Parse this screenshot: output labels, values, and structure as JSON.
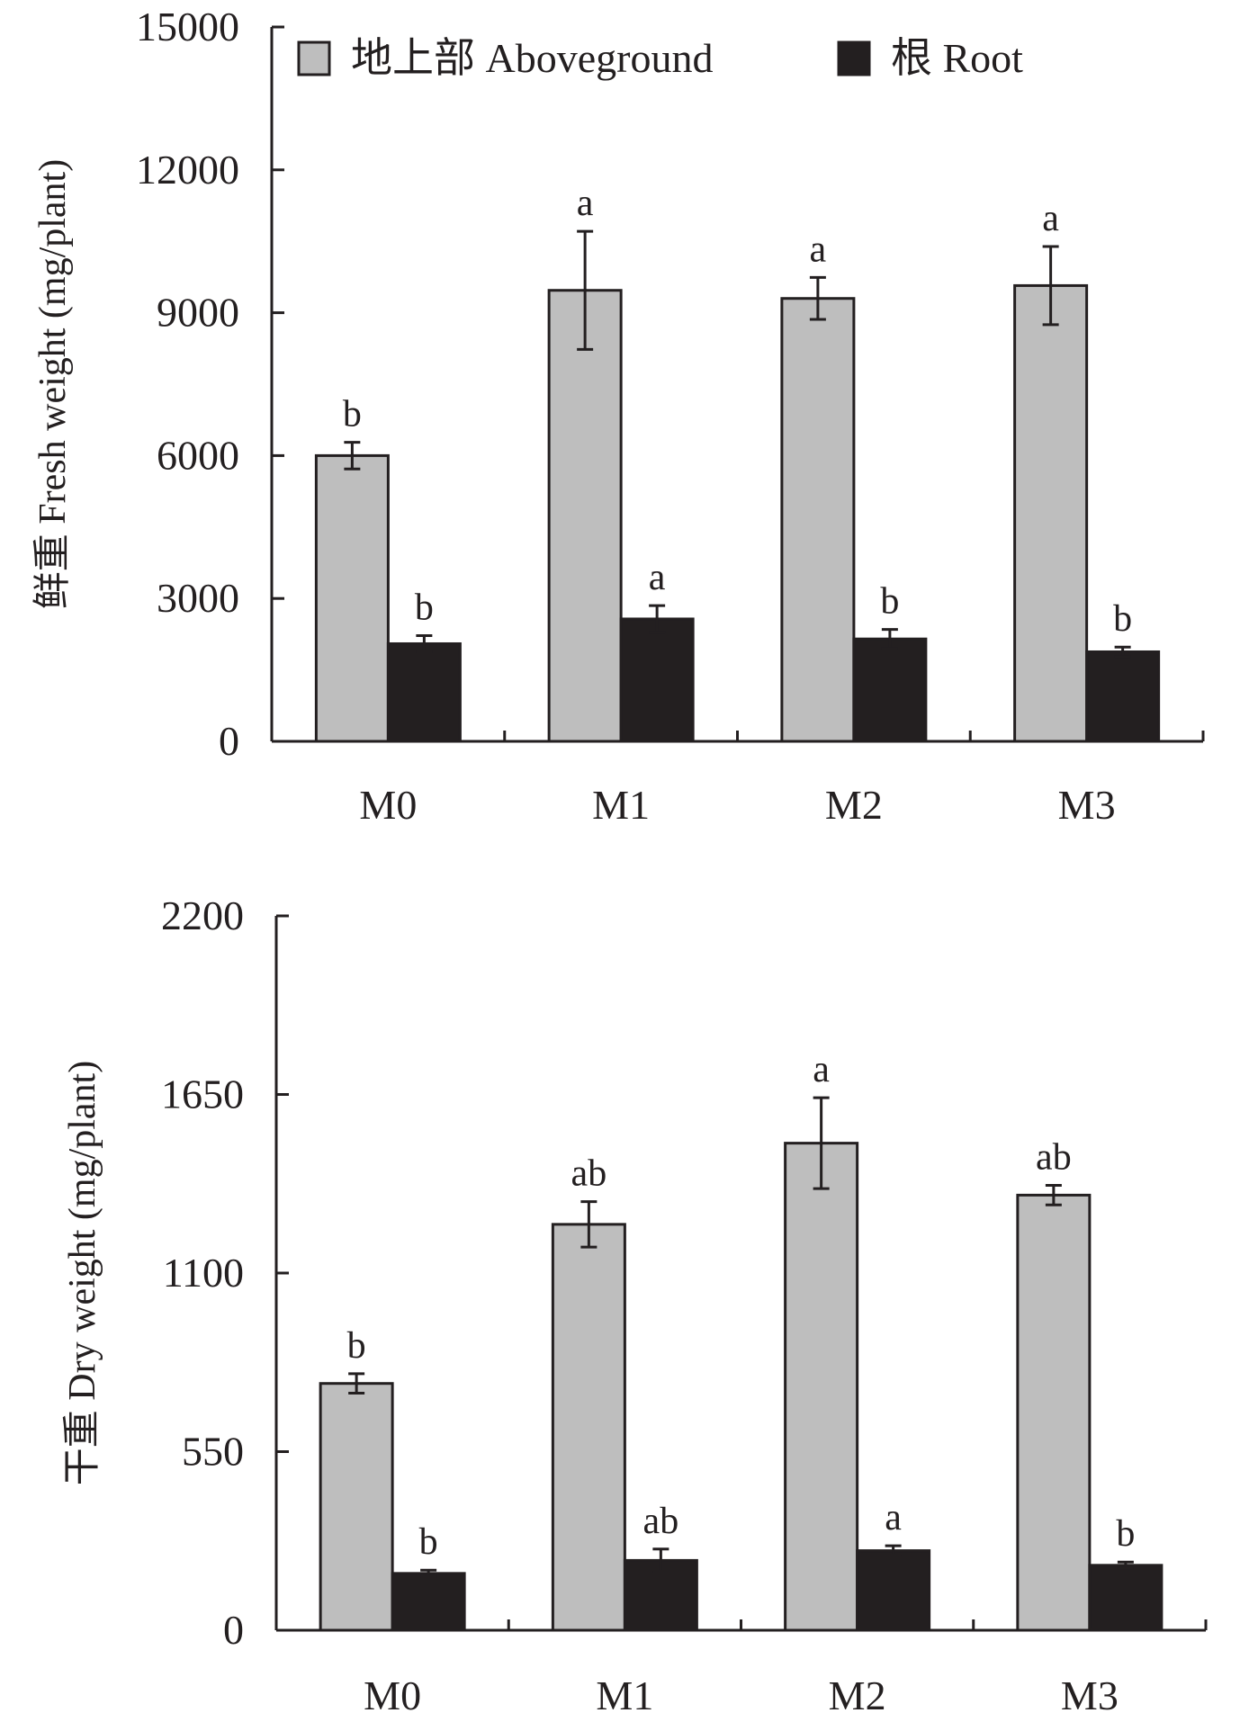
{
  "chart_data": [
    {
      "type": "bar",
      "ylabel": "鲜重 Fresh weight (mg/plant)",
      "ylim": [
        0,
        15000
      ],
      "yticks": [
        "0",
        "3000",
        "6000",
        "9000",
        "12000",
        "15000"
      ],
      "categories": [
        "M0",
        "M1",
        "M2",
        "M3"
      ],
      "legend": {
        "placement": "top",
        "entries": [
          "地上部 Aboveground",
          "根 Root"
        ]
      },
      "series": [
        {
          "name": "地上部 Aboveground",
          "color": "#bebebe",
          "values": [
            6000,
            9470,
            9300,
            9570
          ],
          "errors": [
            280,
            1240,
            440,
            820
          ],
          "letters": [
            "b",
            "a",
            "a",
            "a"
          ]
        },
        {
          "name": "根 Root",
          "color": "#231f20",
          "values": [
            2050,
            2570,
            2150,
            1880
          ],
          "errors": [
            170,
            280,
            200,
            100
          ],
          "letters": [
            "b",
            "a",
            "b",
            "b"
          ]
        }
      ]
    },
    {
      "type": "bar",
      "ylabel": "干重 Dry weight (mg/plant)",
      "ylim": [
        0,
        2200
      ],
      "yticks": [
        "0",
        "550",
        "1100",
        "1650",
        "2200"
      ],
      "categories": [
        "M0",
        "M1",
        "M2",
        "M3"
      ],
      "series": [
        {
          "name": "地上部 Aboveground",
          "color": "#bebebe",
          "values": [
            760,
            1250,
            1500,
            1340
          ],
          "errors": [
            30,
            70,
            140,
            30
          ],
          "letters": [
            "b",
            "ab",
            "a",
            "ab"
          ]
        },
        {
          "name": "根 Root",
          "color": "#231f20",
          "values": [
            175,
            215,
            245,
            200
          ],
          "errors": [
            10,
            35,
            15,
            10
          ],
          "letters": [
            "b",
            "ab",
            "a",
            "b"
          ]
        }
      ]
    }
  ]
}
